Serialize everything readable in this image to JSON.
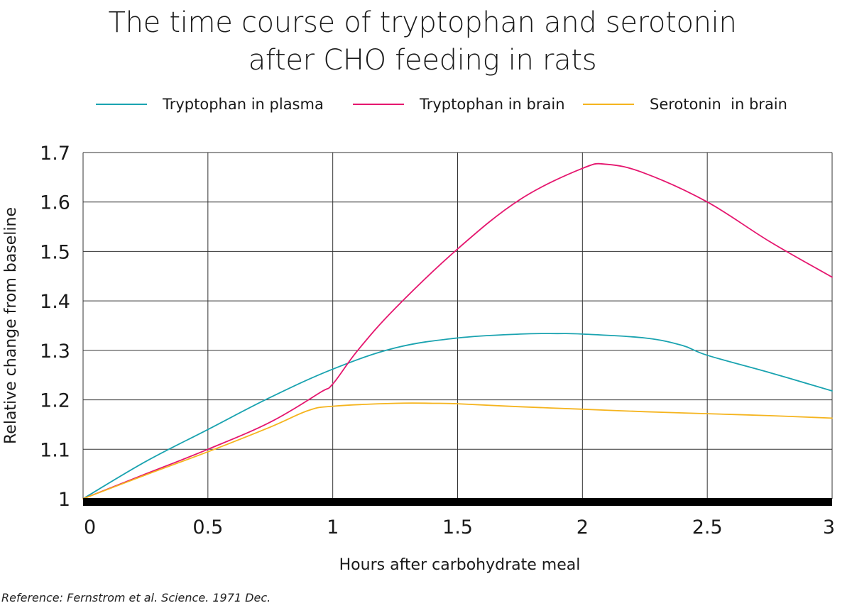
{
  "chart_data": {
    "type": "line",
    "title_lines": [
      "The time course of tryptophan and serotonin",
      "after CHO feeding in rats"
    ],
    "xlabel": "Hours after carbohydrate meal",
    "ylabel": "Relative change from baseline",
    "xlim": [
      0,
      3
    ],
    "ylim": [
      1,
      1.7
    ],
    "x_ticks": [
      0,
      0.5,
      1,
      1.5,
      2,
      2.5,
      3
    ],
    "x_tick_labels": [
      "0",
      "0.5",
      "1",
      "1.5",
      "2",
      "2.5",
      "3"
    ],
    "y_ticks": [
      1,
      1.1,
      1.2,
      1.3,
      1.4,
      1.5,
      1.6,
      1.7
    ],
    "y_tick_labels": [
      "1",
      "1.1",
      "1.2",
      "1.3",
      "1.4",
      "1.5",
      "1.6",
      "1.7"
    ],
    "grid": true,
    "legend_position": "top",
    "series": [
      {
        "name": "Tryptophan in plasma",
        "color": "#1aa3b0",
        "x": [
          0,
          0.25,
          0.5,
          0.75,
          1.0,
          1.25,
          1.5,
          1.75,
          1.9,
          2.0,
          2.25,
          2.4,
          2.5,
          2.75,
          3.0
        ],
        "y": [
          1.0,
          1.075,
          1.14,
          1.205,
          1.262,
          1.305,
          1.325,
          1.333,
          1.334,
          1.333,
          1.325,
          1.31,
          1.29,
          1.255,
          1.218
        ]
      },
      {
        "name": "Tryptophan in brain",
        "color": "#e5176f",
        "x": [
          0,
          0.25,
          0.5,
          0.75,
          0.95,
          1.0,
          1.1,
          1.25,
          1.5,
          1.75,
          2.0,
          2.1,
          2.25,
          2.5,
          2.75,
          3.0
        ],
        "y": [
          1.0,
          1.05,
          1.1,
          1.155,
          1.215,
          1.232,
          1.3,
          1.385,
          1.505,
          1.605,
          1.668,
          1.676,
          1.658,
          1.6,
          1.52,
          1.448
        ]
      },
      {
        "name": "Serotonin  in brain",
        "color": "#f5b41e",
        "x": [
          0,
          0.25,
          0.5,
          0.75,
          0.9,
          1.0,
          1.25,
          1.4,
          1.5,
          1.75,
          2.0,
          2.25,
          2.5,
          2.75,
          3.0
        ],
        "y": [
          1.0,
          1.048,
          1.095,
          1.145,
          1.178,
          1.187,
          1.193,
          1.193,
          1.192,
          1.186,
          1.181,
          1.176,
          1.172,
          1.168,
          1.163
        ]
      }
    ]
  },
  "reference": "Reference: Fernstrom et al. Science. 1971 Dec."
}
